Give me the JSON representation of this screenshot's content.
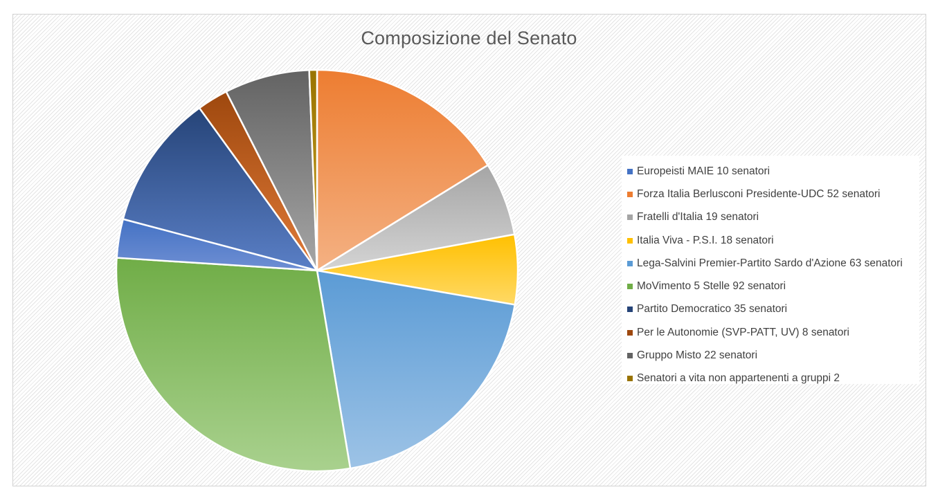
{
  "chart_data": {
    "type": "pie",
    "title": "Composizione del Senato",
    "legend_position": "right",
    "slices": [
      {
        "label": "Europeisti MAIE 10 senatori",
        "value": 10,
        "color": "#4472c4",
        "color_light": "#6f8fd3"
      },
      {
        "label": "Forza Italia Berlusconi Presidente-UDC  52 senatori",
        "value": 52,
        "color": "#ed7d31",
        "color_light": "#f4b183"
      },
      {
        "label": "Fratelli d'Italia 19 senatori",
        "value": 19,
        "color": "#a5a5a5",
        "color_light": "#d4d4d4"
      },
      {
        "label": "Italia Viva - P.S.I. 18 senatori",
        "value": 18,
        "color": "#ffc000",
        "color_light": "#ffd966"
      },
      {
        "label": "Lega-Salvini Premier-Partito Sardo d'Azione  63 senatori",
        "value": 63,
        "color": "#5b9bd5",
        "color_light": "#9dc3e6"
      },
      {
        "label": "MoVimento 5 Stelle  92 senatori",
        "value": 92,
        "color": "#70ad47",
        "color_light": "#a9d18e"
      },
      {
        "label": "Partito Democratico 35 senatori",
        "value": 35,
        "color": "#264478",
        "color_light": "#5a7fc6"
      },
      {
        "label": "Per le Autonomie (SVP-PATT, UV)  8 senatori",
        "value": 8,
        "color": "#9e480e",
        "color_light": "#e07a38"
      },
      {
        "label": " Gruppo Misto  22 senatori",
        "value": 22,
        "color": "#636363",
        "color_light": "#a6a6a6"
      },
      {
        "label": "Senatori a vita non appartenenti a gruppi 2",
        "value": 2,
        "color": "#997300",
        "color_light": "#c9a227"
      }
    ],
    "draw_order": [
      0,
      1,
      2,
      3,
      4,
      5,
      6,
      7,
      8,
      9
    ]
  }
}
